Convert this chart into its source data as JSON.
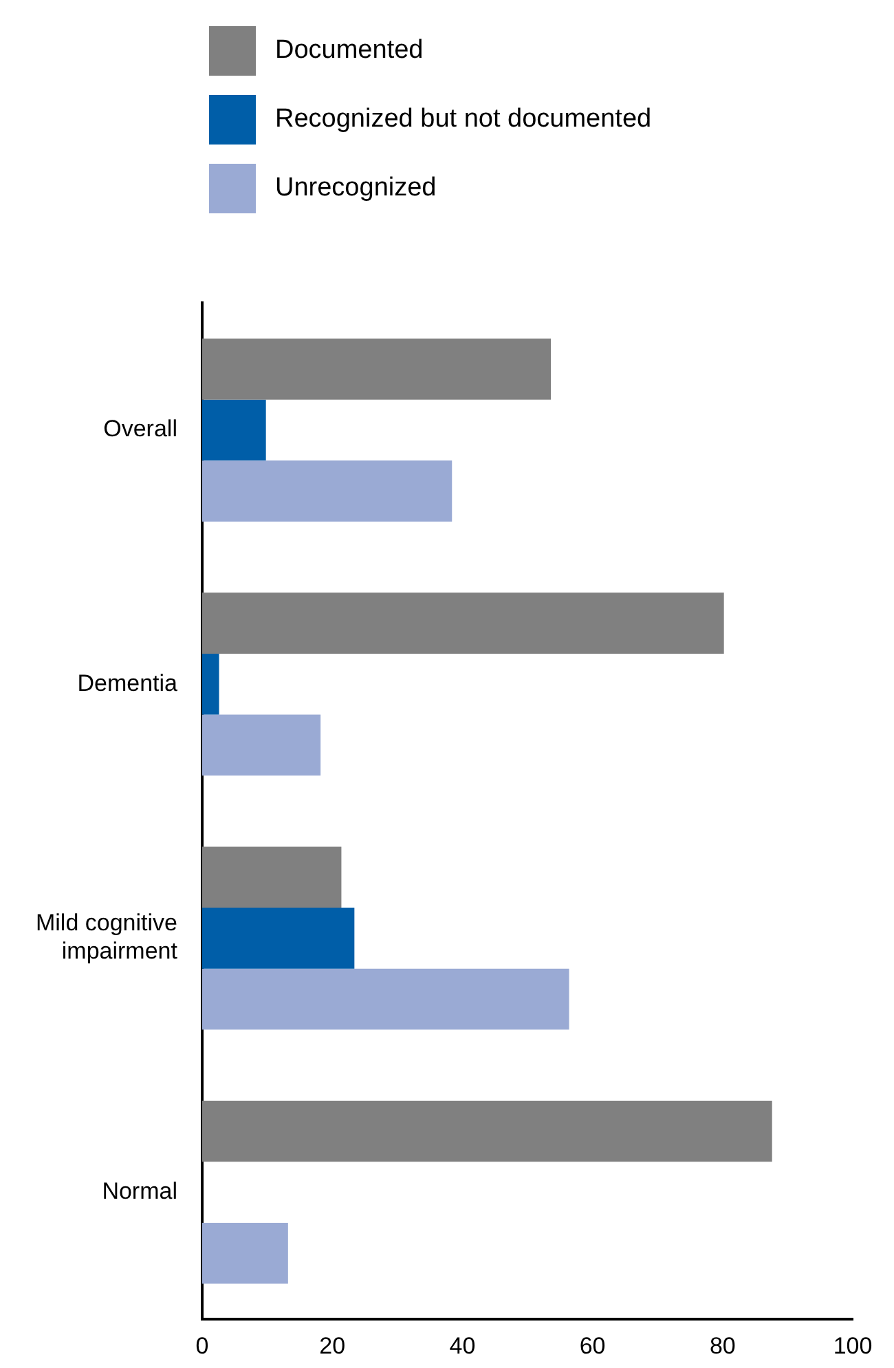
{
  "chart_data": {
    "type": "bar",
    "orientation": "horizontal",
    "categories": [
      "Overall",
      "Dementia",
      "Mild cognitive impairment",
      "Normal"
    ],
    "series": [
      {
        "name": "Documented",
        "color": "#808080",
        "values": [
          53.6,
          80.2,
          21.4,
          87.6
        ]
      },
      {
        "name": "Recognized but not documented",
        "color": "#005ea8",
        "values": [
          9.8,
          2.6,
          23.4,
          0
        ]
      },
      {
        "name": "Unrecognized",
        "color": "#9aaad4",
        "values": [
          38.4,
          18.2,
          56.4,
          13.2
        ]
      }
    ],
    "xlim": [
      0,
      100
    ],
    "xticks": [
      0,
      20,
      40,
      60,
      80,
      100
    ],
    "grid": false,
    "legend": "top left"
  }
}
